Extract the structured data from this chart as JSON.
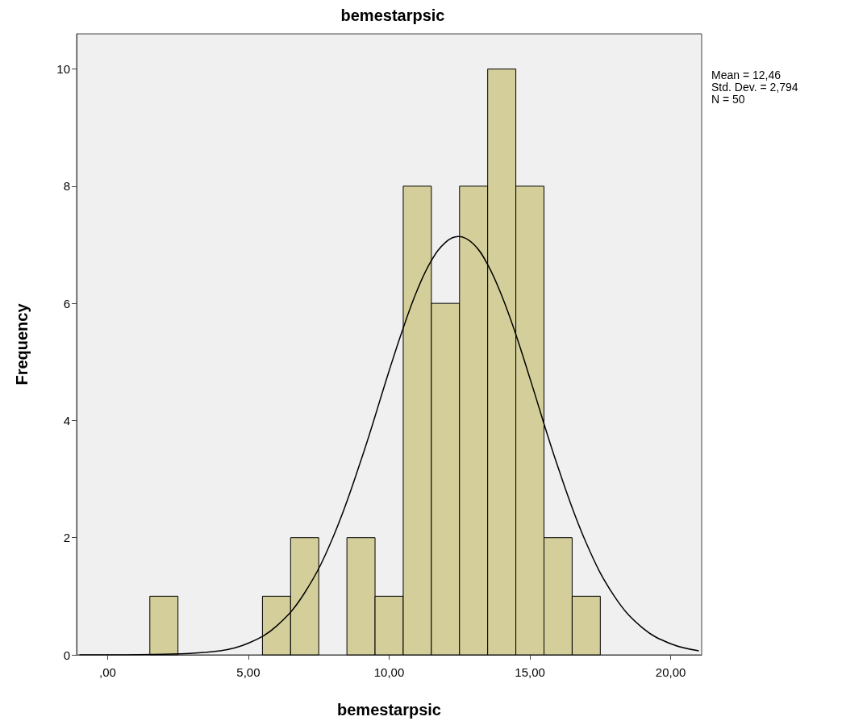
{
  "chart_data": {
    "type": "histogram",
    "title": "bemestarpsic",
    "xlabel": "bemestarpsic",
    "ylabel": "Frequency",
    "annotations": [
      "Mean = 12,46",
      "Std. Dev. = 2,794",
      "N = 50"
    ],
    "bins": [
      1.5,
      2.5,
      3.5,
      4.5,
      5.5,
      6.5,
      7.5,
      8.5,
      9.5,
      10.5,
      11.5,
      12.5,
      13.5,
      14.5,
      15.5,
      16.5,
      17.5
    ],
    "values": [
      1,
      0,
      0,
      0,
      1,
      2,
      0,
      2,
      1,
      8,
      6,
      8,
      10,
      8,
      2,
      1
    ],
    "color": "#d4cf9a",
    "series": [
      {
        "type": "line",
        "color": "#000000",
        "x": [
          -1,
          0,
          2,
          4,
          5,
          6,
          7,
          8,
          9,
          10,
          10.5,
          11,
          11.5,
          12,
          12.46,
          13,
          13.5,
          14,
          14.5,
          15,
          16,
          17,
          18,
          19,
          20,
          21
        ],
        "values": [
          0,
          0,
          0.01,
          0.07,
          0.2,
          0.49,
          1.06,
          2,
          3.32,
          4.85,
          5.58,
          6.23,
          6.73,
          7.04,
          7.14,
          7.01,
          6.66,
          6.13,
          5.47,
          4.72,
          3.2,
          1.91,
          1,
          0.46,
          0.19,
          0.07
        ]
      }
    ],
    "marker": "none",
    "line_style": "solid",
    "xlim": [
      -1.1,
      21.1
    ],
    "xticks": [
      {
        "value": 0,
        "label": ",00"
      },
      {
        "value": 5,
        "label": "5,00"
      },
      {
        "value": 10,
        "label": "10,00"
      },
      {
        "value": 15,
        "label": "15,00"
      },
      {
        "value": 20,
        "label": "20,00"
      }
    ],
    "ylim": [
      0,
      10.6
    ],
    "yticks": [
      0,
      2,
      4,
      6,
      8,
      10
    ],
    "grid": false
  }
}
